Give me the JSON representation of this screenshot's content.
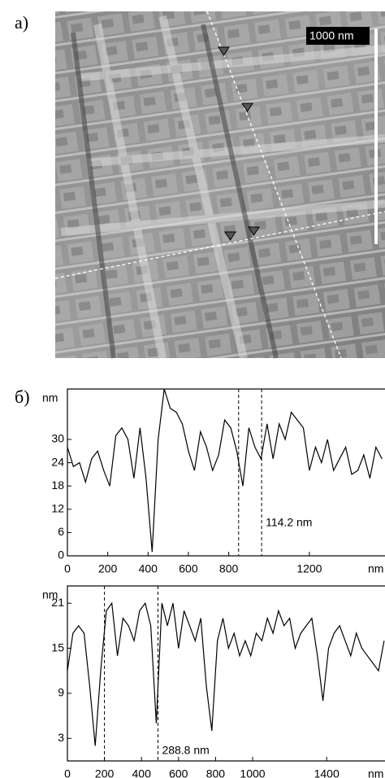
{
  "panels": {
    "a": "а)",
    "b": "б)"
  },
  "image": {
    "scale_bar": "1000 nm"
  },
  "chart_data": [
    {
      "type": "line",
      "y_label": "nm",
      "x_unit": "nm",
      "color": "#000000",
      "x": [
        0,
        30,
        60,
        90,
        120,
        150,
        180,
        210,
        240,
        270,
        300,
        330,
        360,
        390,
        420,
        450,
        480,
        510,
        540,
        570,
        600,
        630,
        660,
        690,
        720,
        750,
        780,
        810,
        840,
        870,
        900,
        930,
        960,
        990,
        1020,
        1050,
        1080,
        1110,
        1140,
        1170,
        1200,
        1230,
        1260,
        1290,
        1320,
        1350,
        1380,
        1410,
        1440,
        1470,
        1500,
        1530,
        1560
      ],
      "values": [
        28,
        23,
        24,
        19,
        25,
        27,
        22,
        18,
        31,
        33,
        30,
        20,
        33,
        20,
        1,
        30,
        43,
        38,
        37,
        34,
        27,
        22,
        32,
        28,
        22,
        26,
        35,
        33,
        27,
        18,
        33,
        28,
        25,
        34,
        25,
        34,
        30,
        37,
        35,
        33,
        22,
        28,
        24,
        30,
        22,
        25,
        28,
        21,
        22,
        26,
        20,
        28,
        25
      ],
      "xlim": [
        0,
        1575
      ],
      "ylim": [
        0,
        43
      ],
      "xticks": [
        0,
        200,
        400,
        600,
        800,
        1200
      ],
      "yticks": [
        0,
        6,
        12,
        18,
        24,
        30
      ],
      "cursors": [
        849,
        963.2
      ],
      "annotation": "114.2 nm"
    },
    {
      "type": "line",
      "y_label": "nm",
      "x_unit": "nm",
      "color": "#000000",
      "x": [
        0,
        30,
        60,
        90,
        120,
        150,
        180,
        210,
        240,
        270,
        300,
        330,
        360,
        390,
        420,
        450,
        480,
        510,
        540,
        570,
        600,
        630,
        660,
        690,
        720,
        750,
        780,
        810,
        840,
        870,
        900,
        930,
        960,
        990,
        1020,
        1050,
        1080,
        1110,
        1140,
        1170,
        1200,
        1230,
        1260,
        1290,
        1320,
        1350,
        1380,
        1410,
        1440,
        1470,
        1500,
        1530,
        1560,
        1590,
        1620,
        1650,
        1680,
        1710
      ],
      "values": [
        12,
        17,
        18,
        17,
        10,
        2,
        12,
        20,
        21,
        14,
        19,
        18,
        16,
        20,
        21,
        18,
        5,
        21,
        18,
        21,
        15,
        20,
        18,
        16,
        19,
        10,
        4,
        16,
        19,
        15,
        17,
        14,
        16,
        14,
        17,
        16,
        19,
        17,
        20,
        18,
        19,
        15,
        17,
        18,
        19,
        14,
        8,
        15,
        17,
        18,
        16,
        14,
        17,
        15,
        14,
        13,
        12,
        16
      ],
      "xlim": [
        0,
        1715
      ],
      "ylim": [
        0,
        23.3
      ],
      "xticks": [
        0,
        200,
        400,
        600,
        800,
        1000,
        1400
      ],
      "yticks": [
        3,
        9,
        15,
        21
      ],
      "cursors": [
        200,
        488.8
      ],
      "annotation": "288.8 nm"
    }
  ]
}
